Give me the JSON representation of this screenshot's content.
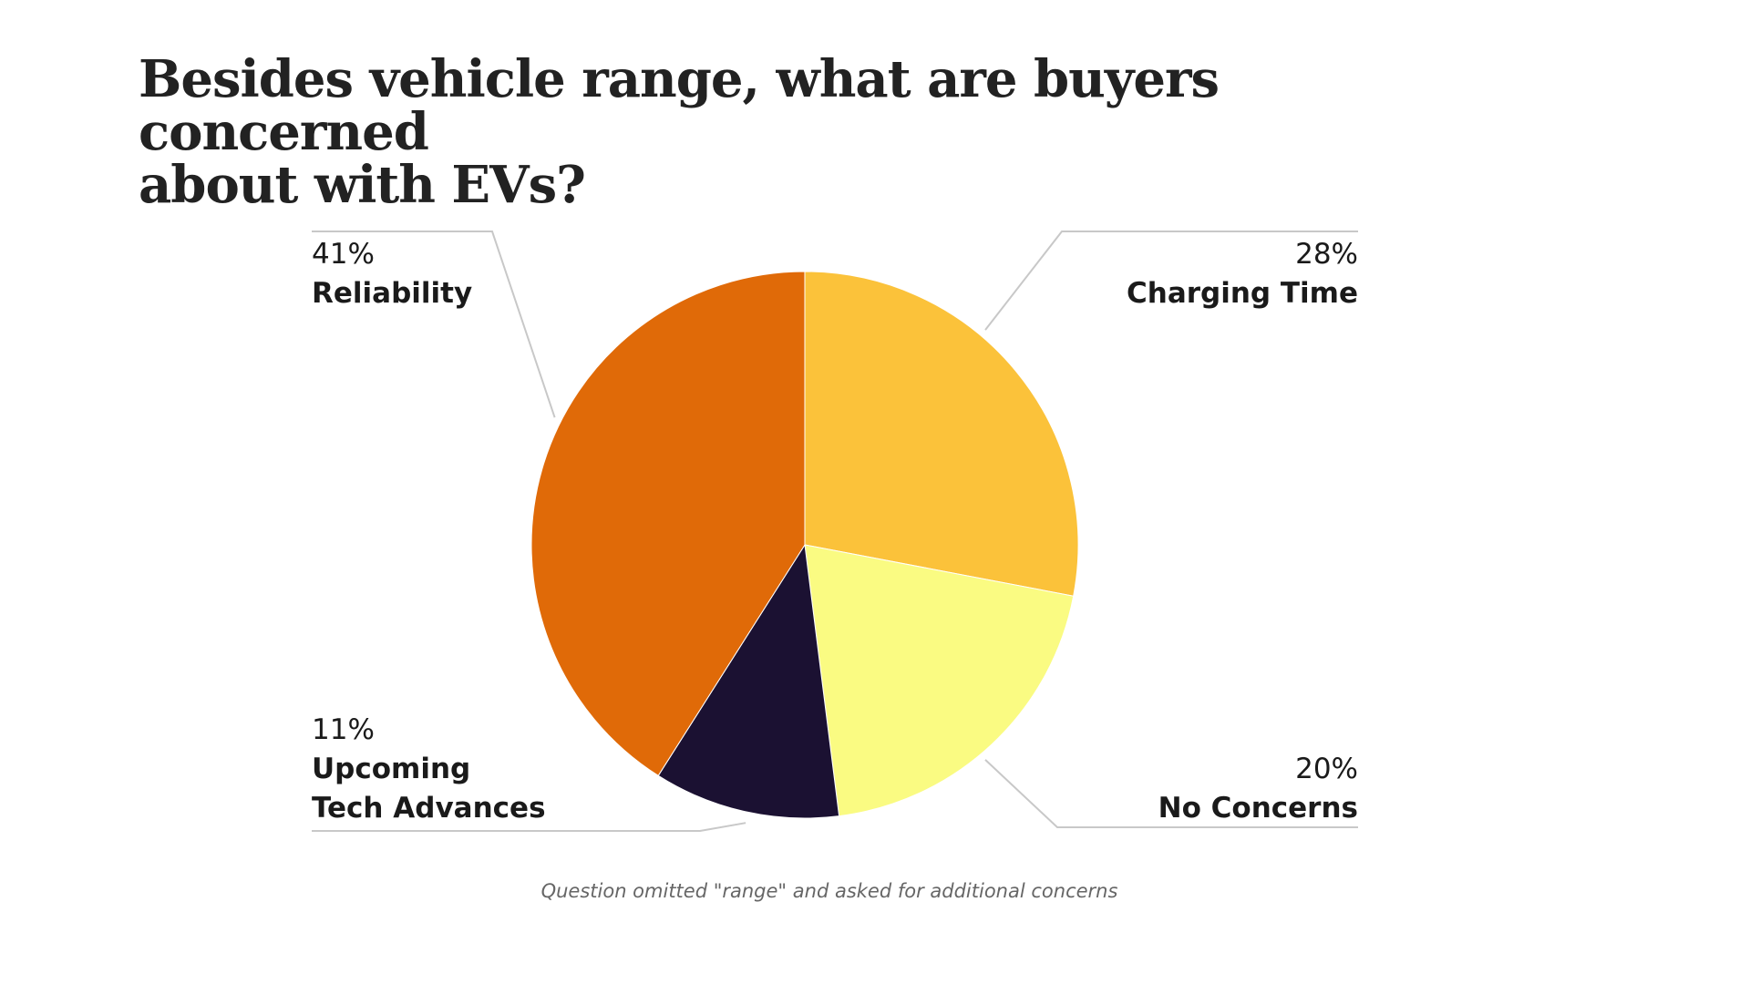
{
  "chart_data": {
    "type": "pie",
    "title": "Besides vehicle range, what are buyers concerned about with EVs?",
    "title_lines": [
      "Besides vehicle range, what are buyers concerned",
      "about with EVs?"
    ],
    "slices": [
      {
        "label": "Charging Time",
        "value": 28,
        "value_label": "28%",
        "color": "#FBC23A"
      },
      {
        "label": "No Concerns",
        "value": 20,
        "value_label": "20%",
        "color": "#FAFB82"
      },
      {
        "label": "Upcoming Tech Advances",
        "value": 11,
        "value_label": "11%",
        "label_lines": [
          "Upcoming",
          "Tech Advances"
        ],
        "color": "#1B1132"
      },
      {
        "label": "Reliability",
        "value": 41,
        "value_label": "41%",
        "color": "#E06A08"
      }
    ],
    "start_angle_deg": 0,
    "direction": "clockwise",
    "footnote": "Question omitted \"range\" and asked for additional concerns"
  }
}
